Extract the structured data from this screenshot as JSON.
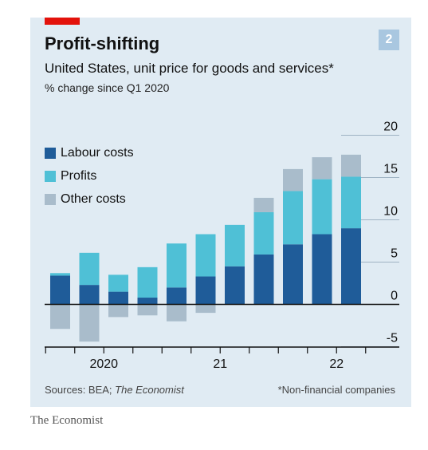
{
  "badge": "2",
  "title": "Profit-shifting",
  "subtitle": "United States, unit price for goods and services*",
  "unit": "% change since Q1 2020",
  "source_prefix": "Sources: BEA; ",
  "source_italic": "The Economist",
  "footnote": "*Non-financial companies",
  "brand": "The Economist",
  "colors": {
    "labour": "#1f5c99",
    "profits": "#4fc0d6",
    "other": "#a9bccb",
    "accent": "#e3120b",
    "background": "#e0ebf3"
  },
  "chart_data": {
    "type": "bar",
    "stacked": true,
    "categories": [
      "2020 Q1",
      "2020 Q2",
      "2020 Q3",
      "2020 Q4",
      "2021 Q1",
      "2021 Q2",
      "2021 Q3",
      "2021 Q4",
      "2022 Q1",
      "2022 Q2",
      "2022 Q3"
    ],
    "series": [
      {
        "name": "Labour costs",
        "color": "#1f5c99",
        "values": [
          3.4,
          2.3,
          1.5,
          0.8,
          2.0,
          3.3,
          4.5,
          5.9,
          7.1,
          8.3,
          9.0
        ]
      },
      {
        "name": "Profits",
        "color": "#4fc0d6",
        "values": [
          0.3,
          3.8,
          2.0,
          3.6,
          5.2,
          5.0,
          4.9,
          5.0,
          6.3,
          6.5,
          6.1
        ]
      },
      {
        "name": "Other costs",
        "color": "#a9bccb",
        "values": [
          -2.9,
          -4.4,
          -1.5,
          -1.3,
          -2.0,
          -1.0,
          0,
          1.7,
          2.6,
          2.6,
          2.6
        ]
      }
    ],
    "ylim": [
      -5,
      20
    ],
    "yticks": [
      -5,
      0,
      5,
      10,
      15,
      20
    ],
    "ytick_labels": [
      "-5",
      "0",
      "5",
      "10",
      "15",
      "20"
    ],
    "xtick_labels": [
      "2020",
      "21",
      "22"
    ],
    "grid": true,
    "legend_position": "top-left"
  }
}
